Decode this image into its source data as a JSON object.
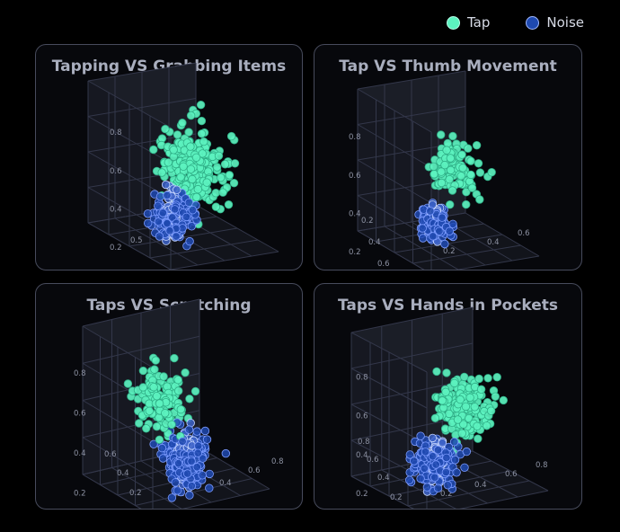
{
  "legend": {
    "items": [
      {
        "label": "Tap",
        "color": "#5cf2bf"
      },
      {
        "label": "Noise",
        "color": "#1e49b0"
      }
    ]
  },
  "colors": {
    "tap": "#5cf2bf",
    "noise": "#1e49b0",
    "noise_core": "#c9d8ff"
  },
  "chart_data": [
    {
      "type": "scatter",
      "title": "Tapping VS Grabbing Items",
      "z_ticks": [
        "0.2",
        "0.4",
        "0.6",
        "0.8"
      ],
      "floor_ticks": [
        "0.5"
      ],
      "grid": true,
      "series": [
        {
          "name": "Tap",
          "cluster_center": [
            0.62,
            0.55,
            0.45
          ],
          "count": 260,
          "spread": 0.12
        },
        {
          "name": "Noise",
          "cluster_center": [
            0.25,
            0.3,
            0.25
          ],
          "count": 200,
          "spread": 0.07
        }
      ]
    },
    {
      "type": "scatter",
      "title": "Tap VS Thumb Movement",
      "z_ticks": [
        "0.2",
        "0.4",
        "0.6",
        "0.8"
      ],
      "floor_ticks": [
        "0.2",
        "0.4",
        "0.6",
        "0.2",
        "0.4",
        "0.6"
      ],
      "grid": true,
      "series": [
        {
          "name": "Tap",
          "cluster_center": [
            0.6,
            0.55,
            0.5
          ],
          "count": 110,
          "spread": 0.1
        },
        {
          "name": "Noise",
          "cluster_center": [
            0.2,
            0.25,
            0.25
          ],
          "count": 150,
          "spread": 0.05
        }
      ]
    },
    {
      "type": "scatter",
      "title": "Taps VS Scratching",
      "z_ticks": [
        "0.2",
        "0.4",
        "0.6",
        "0.8"
      ],
      "floor_ticks": [
        "0.2",
        "0.4",
        "0.6",
        "0.2",
        "0.4",
        "0.6",
        "0.8"
      ],
      "grid": true,
      "series": [
        {
          "name": "Tap",
          "cluster_center": [
            0.4,
            0.55,
            0.55
          ],
          "count": 130,
          "spread": 0.1
        },
        {
          "name": "Noise",
          "cluster_center": [
            0.5,
            0.35,
            0.2
          ],
          "count": 230,
          "spread": 0.08
        }
      ]
    },
    {
      "type": "scatter",
      "title": "Taps VS Hands in Pockets",
      "z_ticks": [
        "0.2",
        "0.4",
        "0.6",
        "0.8"
      ],
      "floor_ticks": [
        "0.2",
        "0.4",
        "0.6",
        "0.8",
        "0.2",
        "0.4",
        "0.6",
        "0.8"
      ],
      "grid": true,
      "series": [
        {
          "name": "Tap",
          "cluster_center": [
            0.65,
            0.55,
            0.5
          ],
          "count": 160,
          "spread": 0.1
        },
        {
          "name": "Noise",
          "cluster_center": [
            0.25,
            0.3,
            0.25
          ],
          "count": 210,
          "spread": 0.07
        }
      ]
    }
  ]
}
